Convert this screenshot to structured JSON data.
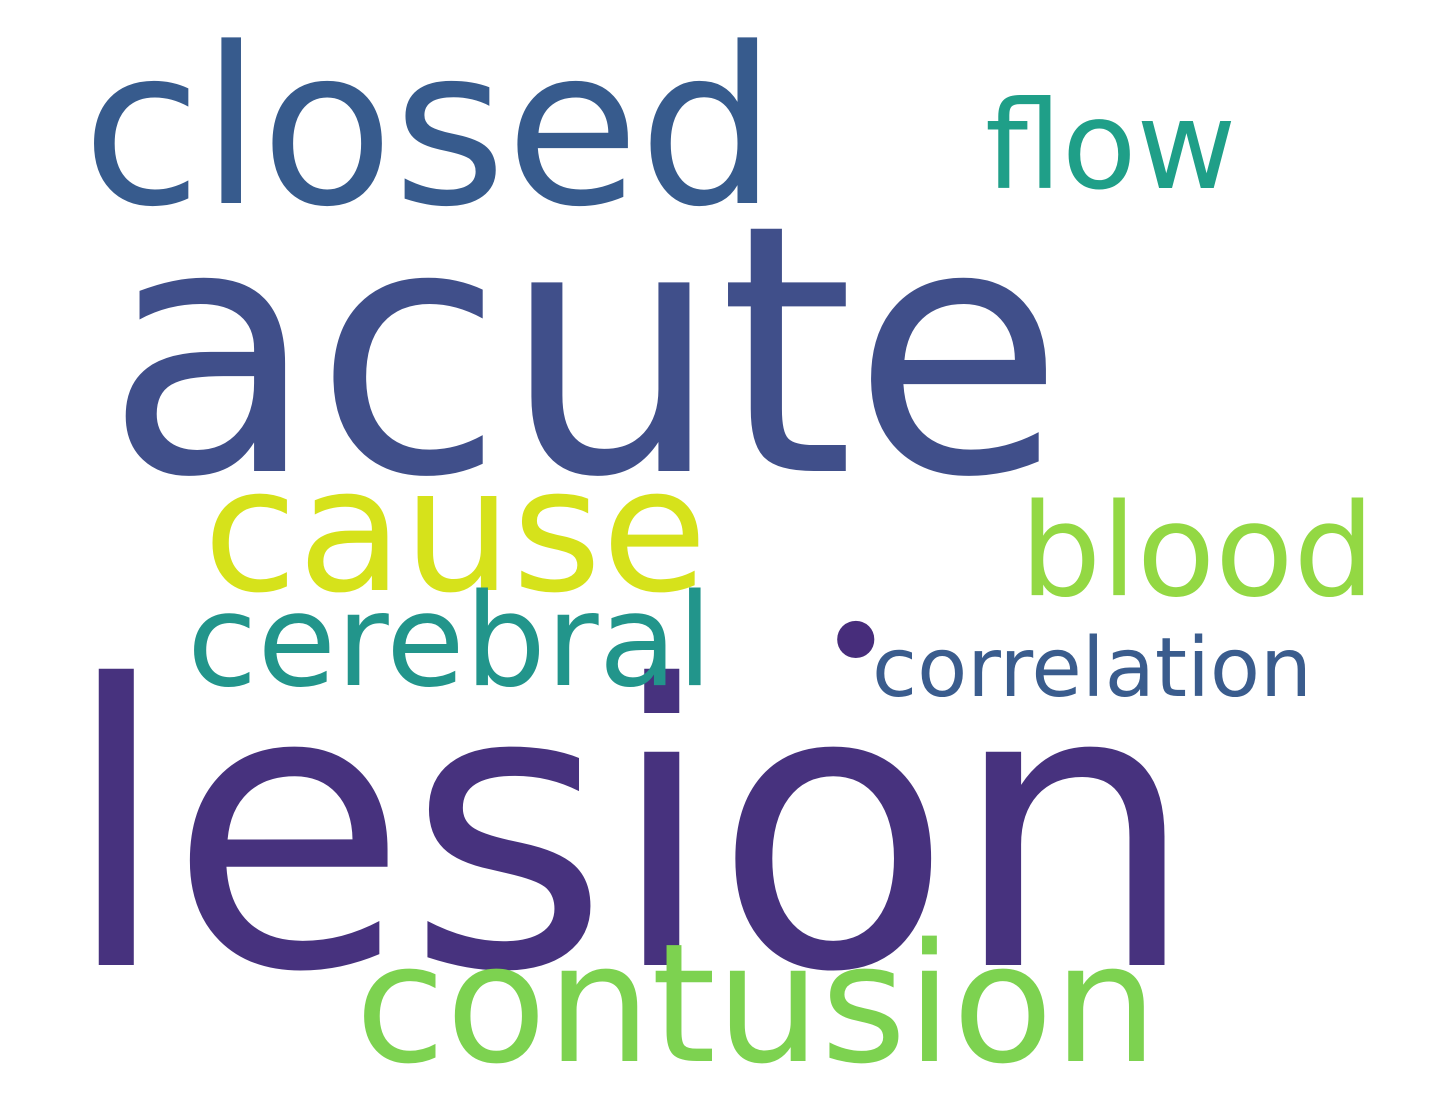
{
  "words": [
    {
      "key": "lesion",
      "text": "lesion",
      "color": "#47327e"
    },
    {
      "key": "acute",
      "text": "acute",
      "color": "#404f8a"
    },
    {
      "key": "closed",
      "text": "closed",
      "color": "#375b8d"
    },
    {
      "key": "cause",
      "text": "cause",
      "color": "#d6e21b"
    },
    {
      "key": "contusion",
      "text": "contusion",
      "color": "#7dd250"
    },
    {
      "key": "cerebral",
      "text": "cerebral",
      "color": "#22958b"
    },
    {
      "key": "blood",
      "text": "blood",
      "color": "#93d843"
    },
    {
      "key": "flow",
      "text": "flow",
      "color": "#1f9f88"
    },
    {
      "key": "correlation",
      "text": "correlation",
      "color": "#3a5c8d"
    },
    {
      "key": "dot",
      "text": "•",
      "color": "#472d7b"
    }
  ]
}
